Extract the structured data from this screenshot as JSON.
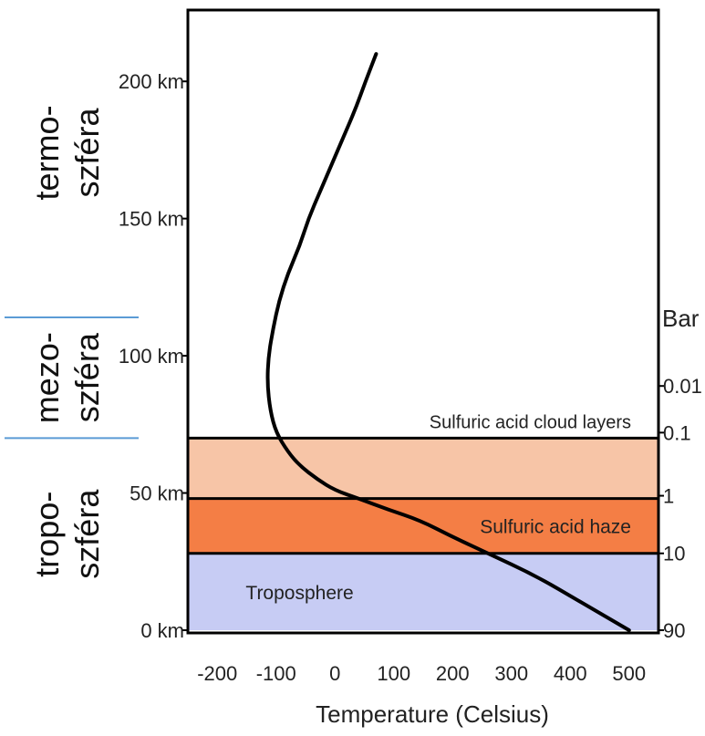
{
  "chart_data": {
    "type": "line",
    "title": "",
    "xlabel": "Temperature (Celsius)",
    "ylabel": "",
    "right_axis_label": "Bar",
    "xlim": [
      -250,
      550
    ],
    "ylim": [
      -1,
      226
    ],
    "x_ticks": [
      -200,
      -100,
      0,
      100,
      200,
      300,
      400,
      500
    ],
    "y_ticks": [
      {
        "value": 0,
        "label": "0 km"
      },
      {
        "value": 50,
        "label": "50 km"
      },
      {
        "value": 100,
        "label": "100 km"
      },
      {
        "value": 150,
        "label": "150 km"
      },
      {
        "value": 200,
        "label": "200 km"
      }
    ],
    "pressure_ticks": [
      {
        "altitude": 0,
        "label": "90"
      },
      {
        "altitude": 28,
        "label": "10"
      },
      {
        "altitude": 49,
        "label": "1"
      },
      {
        "altitude": 72,
        "label": "0.1"
      },
      {
        "altitude": 89,
        "label": "0.01"
      }
    ],
    "bands": [
      {
        "name": "Troposphere",
        "from": 0,
        "to": 28,
        "color": "#c7ccf4"
      },
      {
        "name": "Sulfuric acid haze",
        "from": 28,
        "to": 48,
        "color": "#f47e45"
      },
      {
        "name": "",
        "from": 48,
        "to": 70,
        "color": "#f7c5a7"
      }
    ],
    "boundary_label": {
      "text": "Sulfuric acid cloud layers",
      "altitude": 70
    },
    "series": [
      {
        "color": "#000000",
        "points": [
          [
            500,
            0
          ],
          [
            420,
            10
          ],
          [
            340,
            20
          ],
          [
            260,
            28
          ],
          [
            200,
            34
          ],
          [
            145,
            40
          ],
          [
            90,
            44
          ],
          [
            40,
            48
          ],
          [
            0,
            51
          ],
          [
            -30,
            55
          ],
          [
            -60,
            60
          ],
          [
            -80,
            65
          ],
          [
            -100,
            72
          ],
          [
            -110,
            80
          ],
          [
            -115,
            90
          ],
          [
            -113,
            100
          ],
          [
            -105,
            110
          ],
          [
            -95,
            120
          ],
          [
            -80,
            130
          ],
          [
            -60,
            140
          ],
          [
            -45,
            150
          ],
          [
            -25,
            160
          ],
          [
            -5,
            170
          ],
          [
            15,
            180
          ],
          [
            35,
            190
          ],
          [
            52,
            200
          ],
          [
            70,
            210
          ]
        ]
      }
    ]
  },
  "regions": [
    {
      "line1": "termo-",
      "line2": "szféra",
      "from": 130,
      "to": 218
    },
    {
      "line1": "mezo-",
      "line2": "szféra",
      "from": 70,
      "to": 114
    },
    {
      "line1": "tropo-",
      "line2": "szféra",
      "from": 0,
      "to": 70
    }
  ],
  "region_divider_color": "#5b9bd5"
}
